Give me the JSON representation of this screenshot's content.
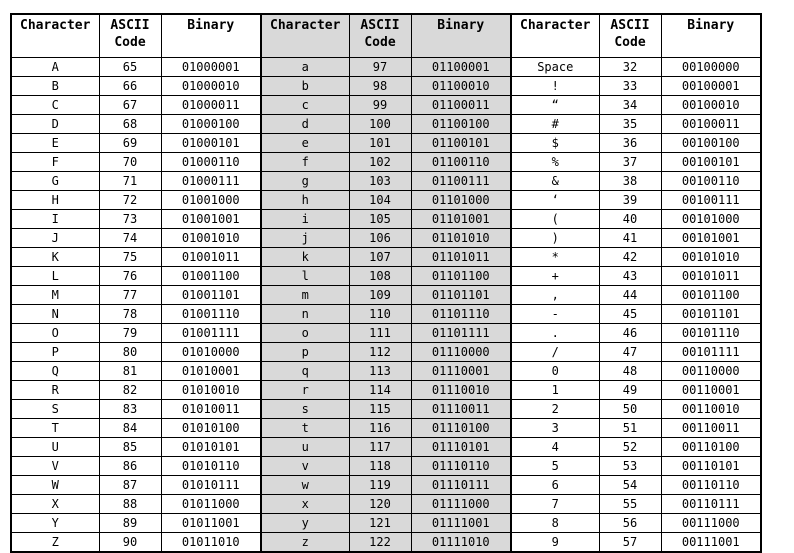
{
  "colors": {
    "page_bg": "#ffffff",
    "border": "#000000",
    "shaded_group_bg": "#d9d9d9",
    "text": "#000000"
  },
  "chart_data": {
    "type": "table",
    "columns": [
      "Character",
      "ASCII Code",
      "Binary"
    ],
    "header_labels": [
      "Character",
      "ASCII\nCode",
      "Binary"
    ],
    "header_names": [
      "character",
      "ascii-code",
      "binary"
    ],
    "groups": [
      {
        "label": "uppercase-letters",
        "shaded": false,
        "rows": [
          [
            "A",
            "65",
            "01000001"
          ],
          [
            "B",
            "66",
            "01000010"
          ],
          [
            "C",
            "67",
            "01000011"
          ],
          [
            "D",
            "68",
            "01000100"
          ],
          [
            "E",
            "69",
            "01000101"
          ],
          [
            "F",
            "70",
            "01000110"
          ],
          [
            "G",
            "71",
            "01000111"
          ],
          [
            "H",
            "72",
            "01001000"
          ],
          [
            "I",
            "73",
            "01001001"
          ],
          [
            "J",
            "74",
            "01001010"
          ],
          [
            "K",
            "75",
            "01001011"
          ],
          [
            "L",
            "76",
            "01001100"
          ],
          [
            "M",
            "77",
            "01001101"
          ],
          [
            "N",
            "78",
            "01001110"
          ],
          [
            "O",
            "79",
            "01001111"
          ],
          [
            "P",
            "80",
            "01010000"
          ],
          [
            "Q",
            "81",
            "01010001"
          ],
          [
            "R",
            "82",
            "01010010"
          ],
          [
            "S",
            "83",
            "01010011"
          ],
          [
            "T",
            "84",
            "01010100"
          ],
          [
            "U",
            "85",
            "01010101"
          ],
          [
            "V",
            "86",
            "01010110"
          ],
          [
            "W",
            "87",
            "01010111"
          ],
          [
            "X",
            "88",
            "01011000"
          ],
          [
            "Y",
            "89",
            "01011001"
          ],
          [
            "Z",
            "90",
            "01011010"
          ]
        ]
      },
      {
        "label": "lowercase-letters",
        "shaded": true,
        "rows": [
          [
            "a",
            "97",
            "01100001"
          ],
          [
            "b",
            "98",
            "01100010"
          ],
          [
            "c",
            "99",
            "01100011"
          ],
          [
            "d",
            "100",
            "01100100"
          ],
          [
            "e",
            "101",
            "01100101"
          ],
          [
            "f",
            "102",
            "01100110"
          ],
          [
            "g",
            "103",
            "01100111"
          ],
          [
            "h",
            "104",
            "01101000"
          ],
          [
            "i",
            "105",
            "01101001"
          ],
          [
            "j",
            "106",
            "01101010"
          ],
          [
            "k",
            "107",
            "01101011"
          ],
          [
            "l",
            "108",
            "01101100"
          ],
          [
            "m",
            "109",
            "01101101"
          ],
          [
            "n",
            "110",
            "01101110"
          ],
          [
            "o",
            "111",
            "01101111"
          ],
          [
            "p",
            "112",
            "01110000"
          ],
          [
            "q",
            "113",
            "01110001"
          ],
          [
            "r",
            "114",
            "01110010"
          ],
          [
            "s",
            "115",
            "01110011"
          ],
          [
            "t",
            "116",
            "01110100"
          ],
          [
            "u",
            "117",
            "01110101"
          ],
          [
            "v",
            "118",
            "01110110"
          ],
          [
            "w",
            "119",
            "01110111"
          ],
          [
            "x",
            "120",
            "01111000"
          ],
          [
            "y",
            "121",
            "01111001"
          ],
          [
            "z",
            "122",
            "01111010"
          ]
        ]
      },
      {
        "label": "symbols-and-digits",
        "shaded": false,
        "rows": [
          [
            "Space",
            "32",
            "00100000"
          ],
          [
            "!",
            "33",
            "00100001"
          ],
          [
            "“",
            "34",
            "00100010"
          ],
          [
            "#",
            "35",
            "00100011"
          ],
          [
            "$",
            "36",
            "00100100"
          ],
          [
            "%",
            "37",
            "00100101"
          ],
          [
            "&",
            "38",
            "00100110"
          ],
          [
            "‘",
            "39",
            "00100111"
          ],
          [
            "(",
            "40",
            "00101000"
          ],
          [
            ")",
            "41",
            "00101001"
          ],
          [
            "*",
            "42",
            "00101010"
          ],
          [
            "+",
            "43",
            "00101011"
          ],
          [
            ",",
            "44",
            "00101100"
          ],
          [
            "-",
            "45",
            "00101101"
          ],
          [
            ".",
            "46",
            "00101110"
          ],
          [
            "/",
            "47",
            "00101111"
          ],
          [
            "0",
            "48",
            "00110000"
          ],
          [
            "1",
            "49",
            "00110001"
          ],
          [
            "2",
            "50",
            "00110010"
          ],
          [
            "3",
            "51",
            "00110011"
          ],
          [
            "4",
            "52",
            "00110100"
          ],
          [
            "5",
            "53",
            "00110101"
          ],
          [
            "6",
            "54",
            "00110110"
          ],
          [
            "7",
            "55",
            "00110111"
          ],
          [
            "8",
            "56",
            "00111000"
          ],
          [
            "9",
            "57",
            "00111001"
          ]
        ]
      }
    ]
  }
}
